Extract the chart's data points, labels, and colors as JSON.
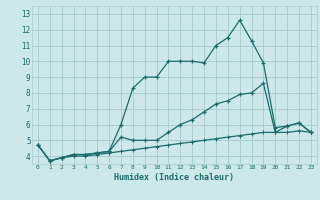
{
  "xlabel": "Humidex (Indice chaleur)",
  "background_color": "#cde8e8",
  "grid_color": "#aacece",
  "line_color": "#1a6b6b",
  "xlim": [
    -0.5,
    23.5
  ],
  "ylim": [
    3.5,
    13.5
  ],
  "xticks": [
    0,
    1,
    2,
    3,
    4,
    5,
    6,
    7,
    8,
    9,
    10,
    11,
    12,
    13,
    14,
    15,
    16,
    17,
    18,
    19,
    20,
    21,
    22,
    23
  ],
  "yticks": [
    4,
    5,
    6,
    7,
    8,
    9,
    10,
    11,
    12,
    13
  ],
  "series1_x": [
    0,
    1,
    2,
    3,
    4,
    5,
    6,
    7,
    8,
    9,
    10,
    11,
    12,
    13,
    14,
    15,
    16,
    17,
    18,
    19,
    20,
    21,
    22,
    23
  ],
  "series1_y": [
    4.7,
    3.7,
    3.9,
    4.1,
    4.1,
    4.2,
    4.3,
    6.0,
    8.3,
    9.0,
    9.0,
    10.0,
    10.0,
    10.0,
    9.9,
    11.0,
    11.5,
    12.6,
    11.3,
    9.9,
    5.8,
    5.9,
    6.1,
    5.5
  ],
  "series2_x": [
    0,
    1,
    2,
    3,
    4,
    5,
    6,
    7,
    8,
    9,
    10,
    11,
    12,
    13,
    14,
    15,
    16,
    17,
    18,
    19,
    20,
    21,
    22,
    23
  ],
  "series2_y": [
    4.7,
    3.7,
    3.9,
    4.1,
    4.1,
    4.2,
    4.3,
    5.2,
    5.0,
    5.0,
    5.0,
    5.5,
    6.0,
    6.3,
    6.8,
    7.3,
    7.5,
    7.9,
    8.0,
    8.6,
    5.5,
    5.9,
    6.1,
    5.5
  ],
  "series3_x": [
    0,
    1,
    2,
    3,
    4,
    5,
    6,
    7,
    8,
    9,
    10,
    11,
    12,
    13,
    14,
    15,
    16,
    17,
    18,
    19,
    20,
    21,
    22,
    23
  ],
  "series3_y": [
    4.7,
    3.7,
    3.9,
    4.0,
    4.0,
    4.1,
    4.2,
    4.3,
    4.4,
    4.5,
    4.6,
    4.7,
    4.8,
    4.9,
    5.0,
    5.1,
    5.2,
    5.3,
    5.4,
    5.5,
    5.5,
    5.5,
    5.6,
    5.5
  ]
}
